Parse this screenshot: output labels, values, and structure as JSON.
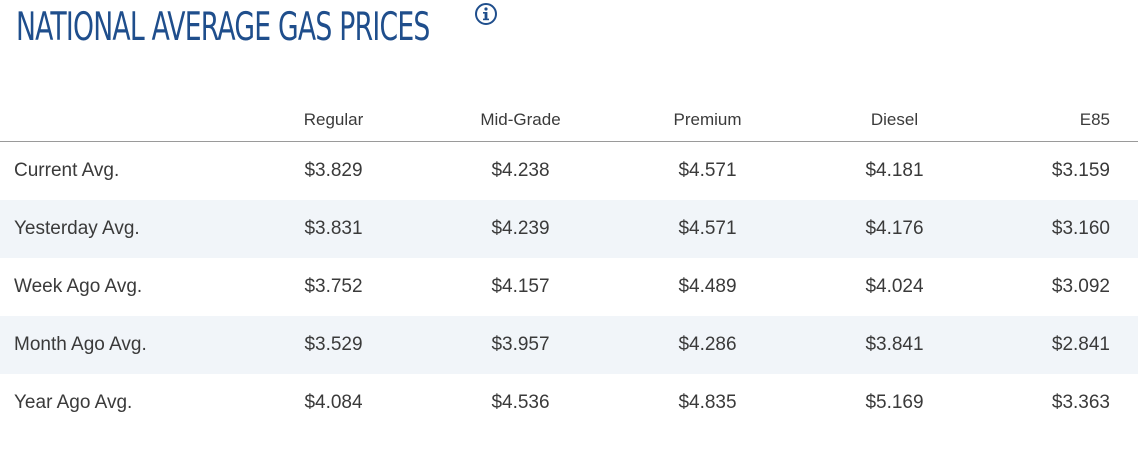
{
  "header": {
    "title": "NATIONAL AVERAGE GAS PRICES",
    "info_icon": "info-circle-icon"
  },
  "colors": {
    "title": "#1f4e8c",
    "row_stripe": "#f1f5f9",
    "text": "#3a3a3a"
  },
  "table": {
    "columns": [
      "",
      "Regular",
      "Mid-Grade",
      "Premium",
      "Diesel",
      "E85"
    ],
    "rows": [
      {
        "label": "Current Avg.",
        "values": [
          "$3.829",
          "$4.238",
          "$4.571",
          "$4.181",
          "$3.159"
        ]
      },
      {
        "label": "Yesterday Avg.",
        "values": [
          "$3.831",
          "$4.239",
          "$4.571",
          "$4.176",
          "$3.160"
        ]
      },
      {
        "label": "Week Ago Avg.",
        "values": [
          "$3.752",
          "$4.157",
          "$4.489",
          "$4.024",
          "$3.092"
        ]
      },
      {
        "label": "Month Ago Avg.",
        "values": [
          "$3.529",
          "$3.957",
          "$4.286",
          "$3.841",
          "$2.841"
        ]
      },
      {
        "label": "Year Ago Avg.",
        "values": [
          "$4.084",
          "$4.536",
          "$4.835",
          "$5.169",
          "$3.363"
        ]
      }
    ]
  }
}
